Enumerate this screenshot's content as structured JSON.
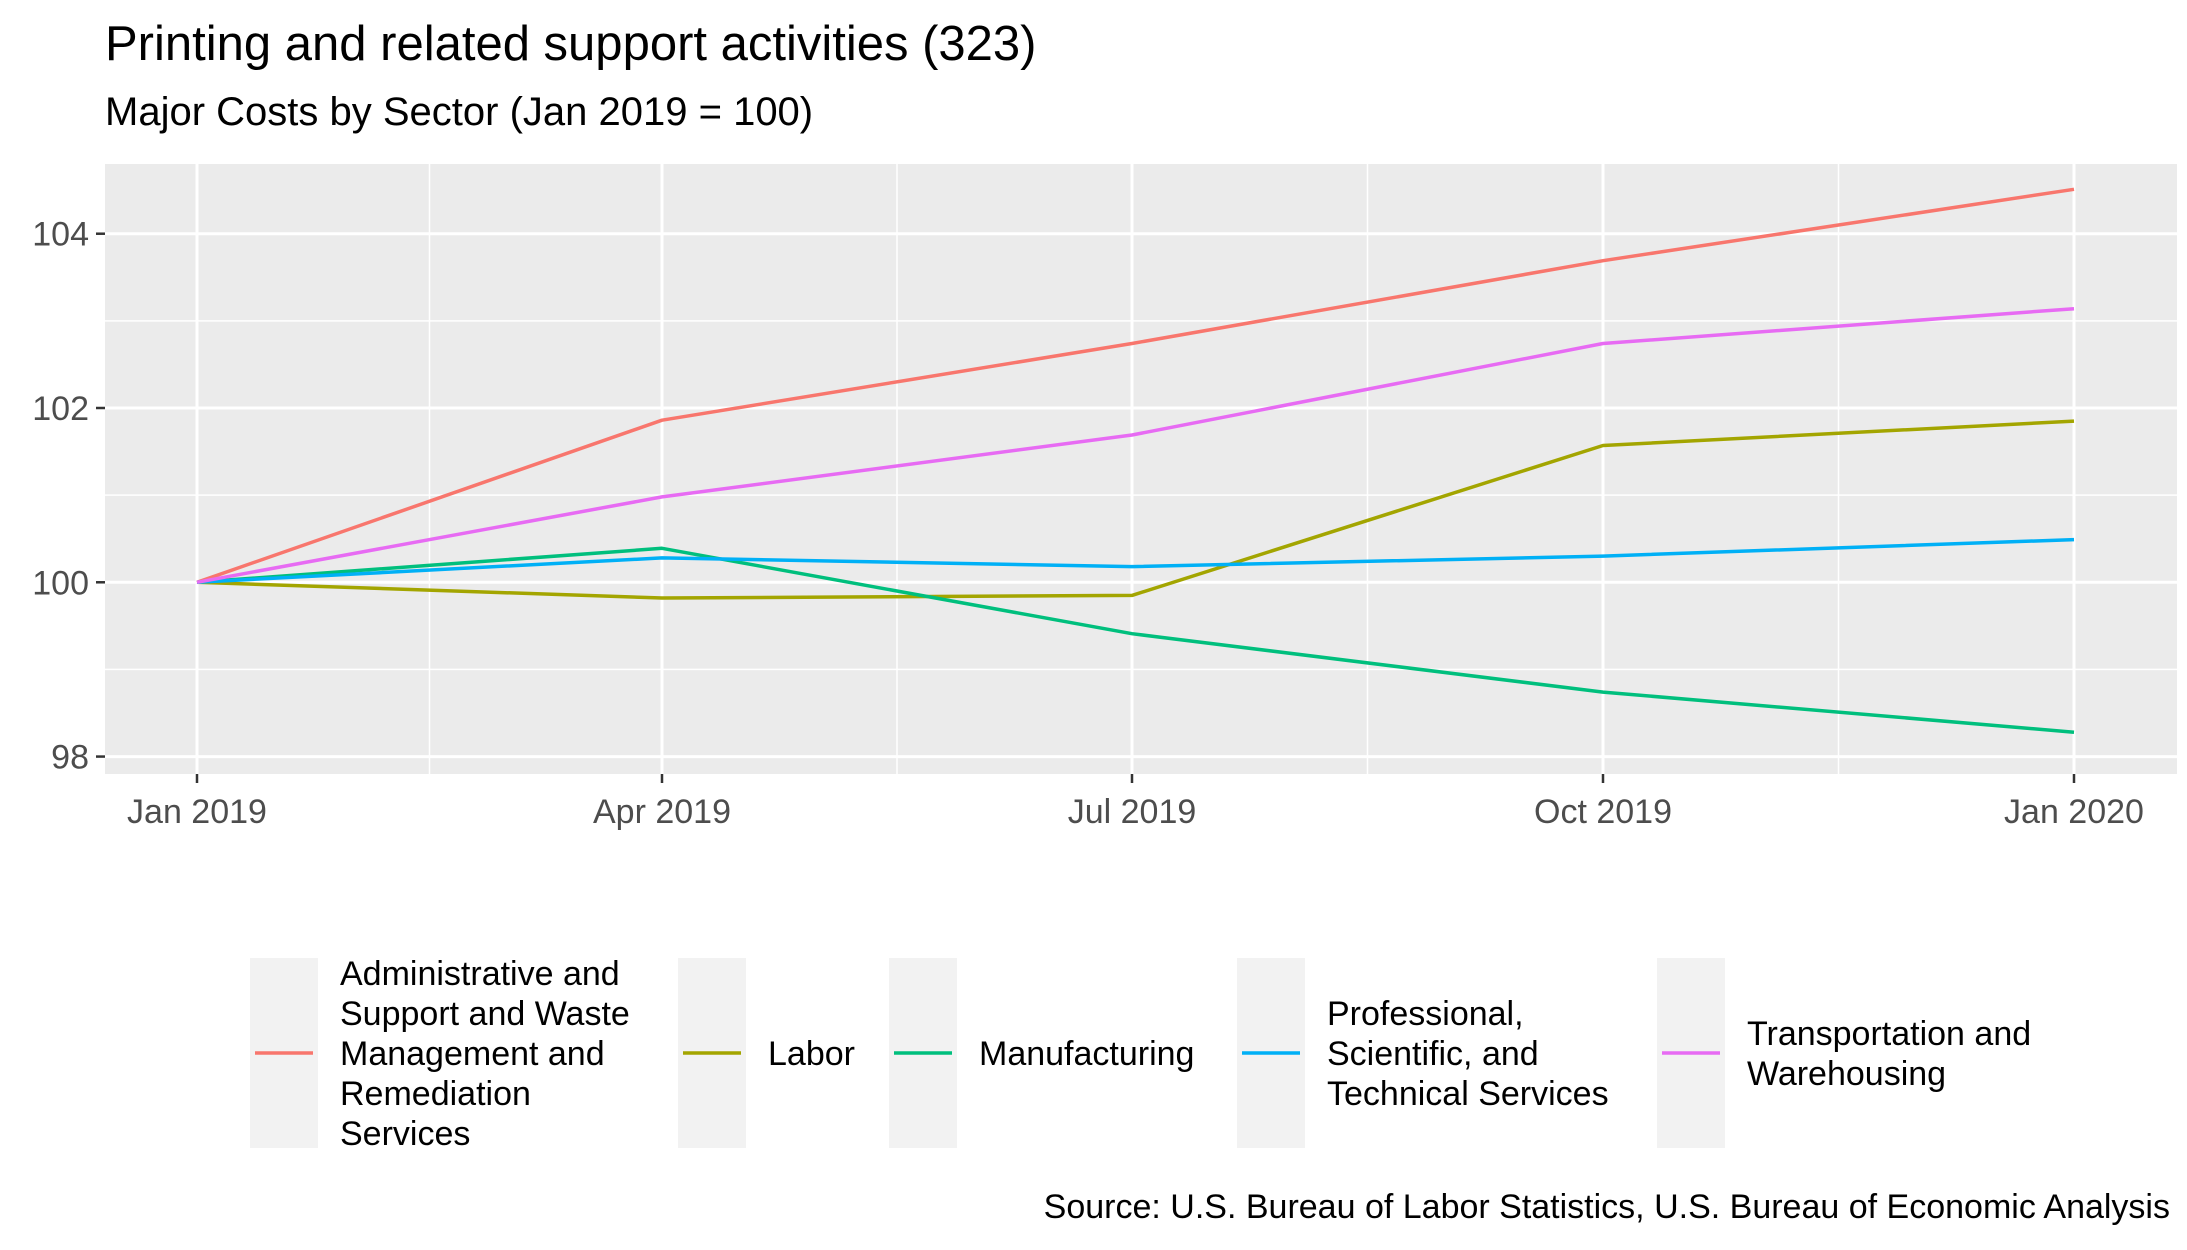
{
  "chart_data": {
    "type": "line",
    "title": "Printing and related support activities (323)",
    "subtitle": "Major Costs by Sector (Jan 2019 = 100)",
    "caption": "Source: U.S. Bureau of Labor Statistics, U.S. Bureau of Economic Analysis",
    "xlabel": "",
    "ylabel": "",
    "x": [
      "2019-01-01",
      "2019-04-01",
      "2019-07-01",
      "2019-10-01",
      "2020-01-01"
    ],
    "x_ticks": [
      "Jan 2019",
      "Apr 2019",
      "Jul 2019",
      "Oct 2019",
      "Jan 2020"
    ],
    "y_ticks": [
      98,
      100,
      102,
      104
    ],
    "ylim": [
      97.8,
      104.8
    ],
    "grid": true,
    "legend_position": "bottom",
    "series": [
      {
        "name": "Administrative and Support and Waste Management and Remediation Services",
        "legend_lines": [
          "Administrative and",
          "Support and Waste",
          "Management and",
          "Remediation",
          "Services"
        ],
        "color": "#F8766D",
        "values": [
          100,
          101.86,
          102.74,
          103.69,
          104.51
        ]
      },
      {
        "name": "Labor",
        "legend_lines": [
          "Labor"
        ],
        "color": "#A3A500",
        "values": [
          100,
          99.82,
          99.85,
          101.57,
          101.85
        ]
      },
      {
        "name": "Manufacturing",
        "legend_lines": [
          "Manufacturing"
        ],
        "color": "#00BF7D",
        "values": [
          100,
          100.39,
          99.41,
          98.74,
          98.28
        ]
      },
      {
        "name": "Professional, Scientific, and Technical Services",
        "legend_lines": [
          "Professional,",
          "Scientific, and",
          "Technical Services"
        ],
        "color": "#00B0F6",
        "values": [
          100,
          100.28,
          100.18,
          100.3,
          100.49
        ]
      },
      {
        "name": "Transportation and Warehousing",
        "legend_lines": [
          "Transportation and",
          "Warehousing"
        ],
        "color": "#E76BF3",
        "values": [
          100,
          100.98,
          101.69,
          102.74,
          103.14
        ]
      }
    ]
  }
}
